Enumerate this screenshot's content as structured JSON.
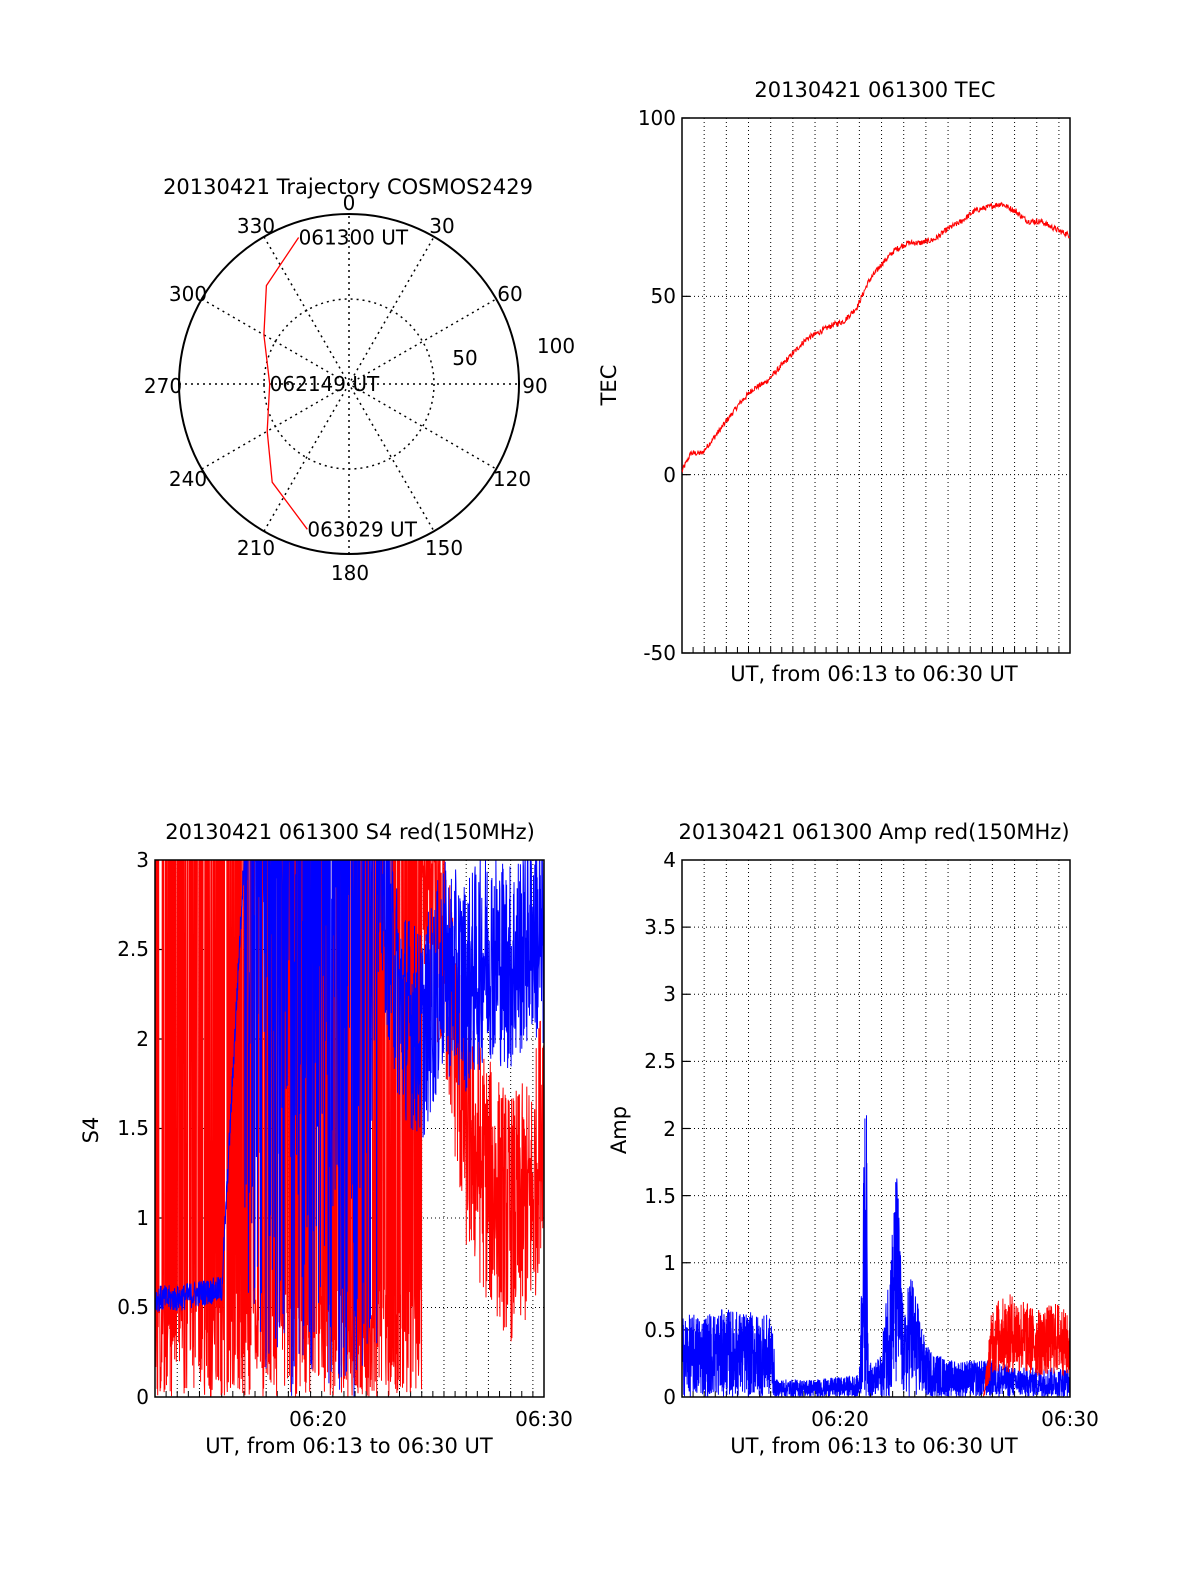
{
  "chart_data": [
    {
      "type": "polar",
      "title": "20130421 Trajectory COSMOS2429",
      "angle_labels": [
        "0",
        "30",
        "60",
        "90",
        "120",
        "150",
        "180",
        "210",
        "240",
        "270",
        "300",
        "330"
      ],
      "radius_labels": [
        "50",
        "100"
      ],
      "series": [
        {
          "color": "#ff0000",
          "points": [
            {
              "azimuth": 341,
              "elevation": 8,
              "label": "061300 UT"
            },
            {
              "azimuth": 320,
              "elevation": 22
            },
            {
              "azimuth": 300,
              "elevation": 38
            },
            {
              "azimuth": 270,
              "elevation": 48,
              "label": "062149 UT"
            },
            {
              "azimuth": 240,
              "elevation": 40
            },
            {
              "azimuth": 218,
              "elevation": 24
            },
            {
              "azimuth": 196,
              "elevation": 10,
              "label": "063029 UT"
            }
          ]
        }
      ]
    },
    {
      "type": "line",
      "title": "20130421 061300 TEC",
      "xlabel": "UT, from 06:13 to 06:30 UT",
      "ylabel": "TEC",
      "xlim": [
        0,
        17.5
      ],
      "ylim": [
        -50,
        100
      ],
      "yticks": [
        "100",
        "50",
        "0",
        "-50"
      ],
      "grid": true,
      "series": [
        {
          "color": "#ff0000",
          "x": [
            0,
            0.4,
            0.9,
            1.4,
            2.0,
            2.6,
            3.2,
            3.8,
            4.4,
            5.0,
            5.6,
            6.2,
            6.8,
            7.3,
            7.9,
            8.4,
            9.0,
            9.6,
            10.2,
            10.8,
            11.4,
            12.0,
            12.6,
            13.2,
            13.8,
            14.4,
            15.0,
            15.6,
            16.2,
            16.8,
            17.5
          ],
          "y": [
            1,
            6,
            6,
            10,
            15,
            20,
            24,
            26,
            30,
            34,
            38,
            40,
            42,
            43,
            47,
            54,
            59,
            63,
            65,
            65,
            66,
            69,
            71,
            74,
            75,
            76,
            74,
            71,
            71,
            69,
            67
          ]
        }
      ]
    },
    {
      "type": "line",
      "title": "20130421 061300 S4 red(150MHz)",
      "xlabel": "UT, from 06:13 to 06:30 UT",
      "ylabel": "S4",
      "xlim": [
        0,
        17.5
      ],
      "ylim": [
        0,
        3
      ],
      "xticks": [
        {
          "x": 7,
          "label": "06:20"
        },
        {
          "x": 17,
          "label": "06:30"
        }
      ],
      "yticks": [
        "0",
        "0.5",
        "1",
        "1.5",
        "2",
        "2.5",
        "3"
      ],
      "grid": true,
      "series": [
        {
          "color": "#ff0000",
          "x": [
            0,
            2,
            4,
            6,
            8,
            10,
            12,
            13,
            14,
            15,
            16,
            17,
            17.5
          ],
          "y": [
            3,
            3,
            3,
            3,
            3,
            3,
            3,
            2.5,
            1.5,
            1.2,
            1.0,
            1.1,
            1.7
          ]
        },
        {
          "color": "#0000ff",
          "x": [
            0,
            1,
            2,
            3,
            4,
            6,
            8,
            10,
            11,
            12,
            13,
            14,
            15,
            16,
            17,
            17.5
          ],
          "y": [
            0.55,
            0.55,
            0.58,
            0.6,
            3,
            3,
            3,
            3,
            2.2,
            2.0,
            2.4,
            2.3,
            2.5,
            2.4,
            2.6,
            2.5
          ]
        }
      ]
    },
    {
      "type": "line",
      "title": "20130421 061300 Amp red(150MHz)",
      "xlabel": "UT, from 06:13 to 06:30 UT",
      "ylabel": "Amp",
      "xlim": [
        0,
        17.5
      ],
      "ylim": [
        0,
        4
      ],
      "xticks": [
        {
          "x": 7,
          "label": "06:20"
        },
        {
          "x": 17,
          "label": "06:30"
        }
      ],
      "yticks": [
        "0",
        "0.5",
        "1",
        "1.5",
        "2",
        "2.5",
        "3",
        "3.5",
        "4"
      ],
      "grid": true,
      "series": [
        {
          "color": "#0000ff",
          "x": [
            0,
            2,
            4.1,
            4.2,
            6,
            8,
            8.3,
            8.4,
            8.6,
            9,
            9.7,
            10,
            10.3,
            11,
            12,
            13,
            14,
            15,
            17.5
          ],
          "y": [
            0.55,
            0.6,
            0.55,
            0.12,
            0.12,
            0.15,
            2.35,
            0.3,
            0.2,
            0.3,
            1.6,
            0.5,
            0.9,
            0.35,
            0.25,
            0.25,
            0.25,
            0.2,
            0.2
          ]
        },
        {
          "color": "#ff0000",
          "x": [
            0,
            13.6,
            14,
            15,
            16,
            17,
            17.5
          ],
          "y": [
            0,
            0,
            0.55,
            0.6,
            0.5,
            0.55,
            0.45
          ]
        }
      ]
    }
  ]
}
